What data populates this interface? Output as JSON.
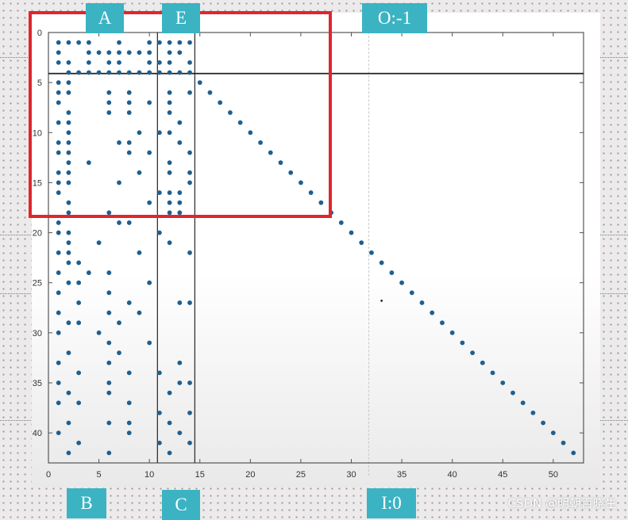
{
  "chart_data": {
    "type": "scatter",
    "title": "",
    "xlabel": "",
    "ylabel": "",
    "xlim": [
      0,
      53
    ],
    "ylim": [
      0,
      43
    ],
    "y_inverted": true,
    "x_ticks": [
      0,
      5,
      10,
      15,
      20,
      25,
      30,
      35,
      40,
      45,
      50
    ],
    "y_ticks": [
      0,
      5,
      10,
      15,
      20,
      25,
      30,
      35,
      40
    ],
    "grid": false,
    "dividers": {
      "vertical": [
        10.8,
        14.5
      ],
      "horizontal": [
        4.1
      ]
    },
    "diagonal": [
      [
        15,
        5
      ],
      [
        16,
        6
      ],
      [
        17,
        7
      ],
      [
        18,
        8
      ],
      [
        19,
        9
      ],
      [
        20,
        10
      ],
      [
        21,
        11
      ],
      [
        22,
        12
      ],
      [
        23,
        13
      ],
      [
        24,
        14
      ],
      [
        25,
        15
      ],
      [
        26,
        16
      ],
      [
        27,
        17
      ],
      [
        28,
        18
      ],
      [
        29,
        19
      ],
      [
        30,
        20
      ],
      [
        31,
        21
      ],
      [
        32,
        22
      ],
      [
        33,
        23
      ],
      [
        34,
        24
      ],
      [
        35,
        25
      ],
      [
        36,
        26
      ],
      [
        37,
        27
      ],
      [
        38,
        28
      ],
      [
        39,
        29
      ],
      [
        40,
        30
      ],
      [
        41,
        31
      ],
      [
        42,
        32
      ],
      [
        43,
        33
      ],
      [
        44,
        34
      ],
      [
        45,
        35
      ],
      [
        46,
        36
      ],
      [
        47,
        37
      ],
      [
        48,
        38
      ],
      [
        49,
        39
      ],
      [
        50,
        40
      ],
      [
        51,
        41
      ],
      [
        52,
        42
      ]
    ],
    "block_top": [
      [
        1,
        1
      ],
      [
        2,
        1
      ],
      [
        3,
        1
      ],
      [
        4,
        1
      ],
      [
        7,
        1
      ],
      [
        10,
        1
      ],
      [
        11,
        1
      ],
      [
        12,
        1
      ],
      [
        13,
        1
      ],
      [
        14,
        1
      ],
      [
        1,
        2
      ],
      [
        4,
        2
      ],
      [
        5,
        2
      ],
      [
        6,
        2
      ],
      [
        7,
        2
      ],
      [
        8,
        2
      ],
      [
        9,
        2
      ],
      [
        10,
        2
      ],
      [
        12,
        2
      ],
      [
        13,
        2
      ],
      [
        1,
        3
      ],
      [
        2,
        3
      ],
      [
        4,
        3
      ],
      [
        6,
        3
      ],
      [
        7,
        3
      ],
      [
        10,
        3
      ],
      [
        11,
        3
      ],
      [
        12,
        3
      ],
      [
        14,
        3
      ],
      [
        2,
        4
      ],
      [
        3,
        4
      ],
      [
        4,
        4
      ],
      [
        5,
        4
      ],
      [
        6,
        4
      ],
      [
        7,
        4
      ],
      [
        8,
        4
      ],
      [
        9,
        4
      ],
      [
        10,
        4
      ],
      [
        11,
        4
      ],
      [
        12,
        4
      ],
      [
        13,
        4
      ],
      [
        14,
        4
      ]
    ],
    "block_left": [
      [
        1,
        5
      ],
      [
        2,
        5
      ],
      [
        1,
        6
      ],
      [
        2,
        6
      ],
      [
        6,
        6
      ],
      [
        8,
        6
      ],
      [
        12,
        6
      ],
      [
        14,
        6
      ],
      [
        1,
        7
      ],
      [
        6,
        7
      ],
      [
        8,
        7
      ],
      [
        10,
        7
      ],
      [
        12,
        7
      ],
      [
        2,
        8
      ],
      [
        6,
        8
      ],
      [
        8,
        8
      ],
      [
        12,
        8
      ],
      [
        1,
        9
      ],
      [
        2,
        9
      ],
      [
        13,
        9
      ],
      [
        2,
        10
      ],
      [
        9,
        10
      ],
      [
        11,
        10
      ],
      [
        12,
        10
      ],
      [
        1,
        11
      ],
      [
        2,
        11
      ],
      [
        7,
        11
      ],
      [
        8,
        11
      ],
      [
        13,
        11
      ],
      [
        1,
        12
      ],
      [
        2,
        12
      ],
      [
        8,
        12
      ],
      [
        10,
        12
      ],
      [
        14,
        12
      ],
      [
        2,
        13
      ],
      [
        4,
        13
      ],
      [
        12,
        13
      ],
      [
        1,
        14
      ],
      [
        2,
        14
      ],
      [
        9,
        14
      ],
      [
        12,
        14
      ],
      [
        14,
        14
      ],
      [
        1,
        15
      ],
      [
        2,
        15
      ],
      [
        7,
        15
      ],
      [
        14,
        15
      ],
      [
        1,
        16
      ],
      [
        11,
        16
      ],
      [
        12,
        16
      ],
      [
        13,
        16
      ],
      [
        2,
        17
      ],
      [
        10,
        17
      ],
      [
        12,
        17
      ],
      [
        13,
        17
      ],
      [
        2,
        18
      ],
      [
        6,
        18
      ],
      [
        12,
        18
      ],
      [
        13,
        18
      ],
      [
        1,
        19
      ],
      [
        7,
        19
      ],
      [
        8,
        19
      ],
      [
        1,
        20
      ],
      [
        2,
        20
      ],
      [
        11,
        20
      ],
      [
        2,
        21
      ],
      [
        5,
        21
      ],
      [
        12,
        21
      ],
      [
        1,
        22
      ],
      [
        2,
        22
      ],
      [
        9,
        22
      ],
      [
        14,
        22
      ],
      [
        2,
        23
      ],
      [
        3,
        23
      ],
      [
        1,
        24
      ],
      [
        4,
        24
      ],
      [
        6,
        24
      ],
      [
        2,
        25
      ],
      [
        3,
        25
      ],
      [
        10,
        25
      ],
      [
        1,
        26
      ],
      [
        6,
        26
      ],
      [
        3,
        27
      ],
      [
        8,
        27
      ],
      [
        13,
        27
      ],
      [
        14,
        27
      ],
      [
        1,
        28
      ],
      [
        6,
        28
      ],
      [
        9,
        28
      ],
      [
        2,
        29
      ],
      [
        3,
        29
      ],
      [
        7,
        29
      ],
      [
        1,
        30
      ],
      [
        5,
        30
      ],
      [
        6,
        31
      ],
      [
        10,
        31
      ],
      [
        2,
        32
      ],
      [
        7,
        32
      ],
      [
        1,
        33
      ],
      [
        6,
        33
      ],
      [
        13,
        33
      ],
      [
        3,
        34
      ],
      [
        8,
        34
      ],
      [
        11,
        34
      ],
      [
        1,
        35
      ],
      [
        6,
        35
      ],
      [
        13,
        35
      ],
      [
        14,
        35
      ],
      [
        2,
        36
      ],
      [
        6,
        36
      ],
      [
        12,
        36
      ],
      [
        1,
        37
      ],
      [
        3,
        37
      ],
      [
        8,
        37
      ],
      [
        11,
        38
      ],
      [
        14,
        38
      ],
      [
        2,
        39
      ],
      [
        6,
        39
      ],
      [
        8,
        39
      ],
      [
        12,
        39
      ],
      [
        1,
        40
      ],
      [
        8,
        40
      ],
      [
        13,
        40
      ],
      [
        3,
        41
      ],
      [
        11,
        41
      ],
      [
        14,
        41
      ],
      [
        2,
        42
      ],
      [
        6,
        42
      ],
      [
        12,
        42
      ]
    ],
    "stray": [
      [
        33,
        26.8
      ]
    ]
  },
  "labels": {
    "a": "A",
    "e": "E",
    "o": "O:-1",
    "b": "B",
    "c": "C",
    "i": "I:0"
  },
  "watermark": "CSDN @明朝百晓生",
  "colors": {
    "marker": "#1f5f8f",
    "label_box": "#3bb3c3",
    "highlight": "#e0262d"
  }
}
